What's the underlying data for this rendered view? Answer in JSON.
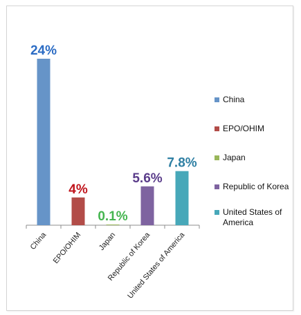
{
  "chart_data": {
    "type": "bar",
    "categories": [
      "China",
      "EPO/OHIM",
      "Japan",
      "Republic of Korea",
      "United States of America"
    ],
    "values": [
      24,
      4,
      0.1,
      5.6,
      7.8
    ],
    "data_labels": [
      "24%",
      "4%",
      "0.1%",
      "5.6%",
      "7.8%"
    ],
    "unit": "%",
    "title": "",
    "xlabel": "",
    "ylabel": "",
    "ylim": [
      0,
      24
    ],
    "grid": false,
    "legend_position": "right",
    "colors": [
      "#6694c8",
      "#b24c48",
      "#99b75a",
      "#7e63a0",
      "#47a8b9"
    ],
    "label_colors": [
      "#2b6cc4",
      "#c0141c",
      "#44b54f",
      "#5a3c8a",
      "#2e7fa3"
    ]
  },
  "legend": {
    "items": [
      {
        "label": "China",
        "color": "#6694c8"
      },
      {
        "label": "EPO/OHIM",
        "color": "#b24c48"
      },
      {
        "label": "Japan",
        "color": "#99b75a"
      },
      {
        "label": "Republic of Korea",
        "color": "#7e63a0"
      },
      {
        "label": "United States of America",
        "color": "#47a8b9"
      }
    ]
  }
}
